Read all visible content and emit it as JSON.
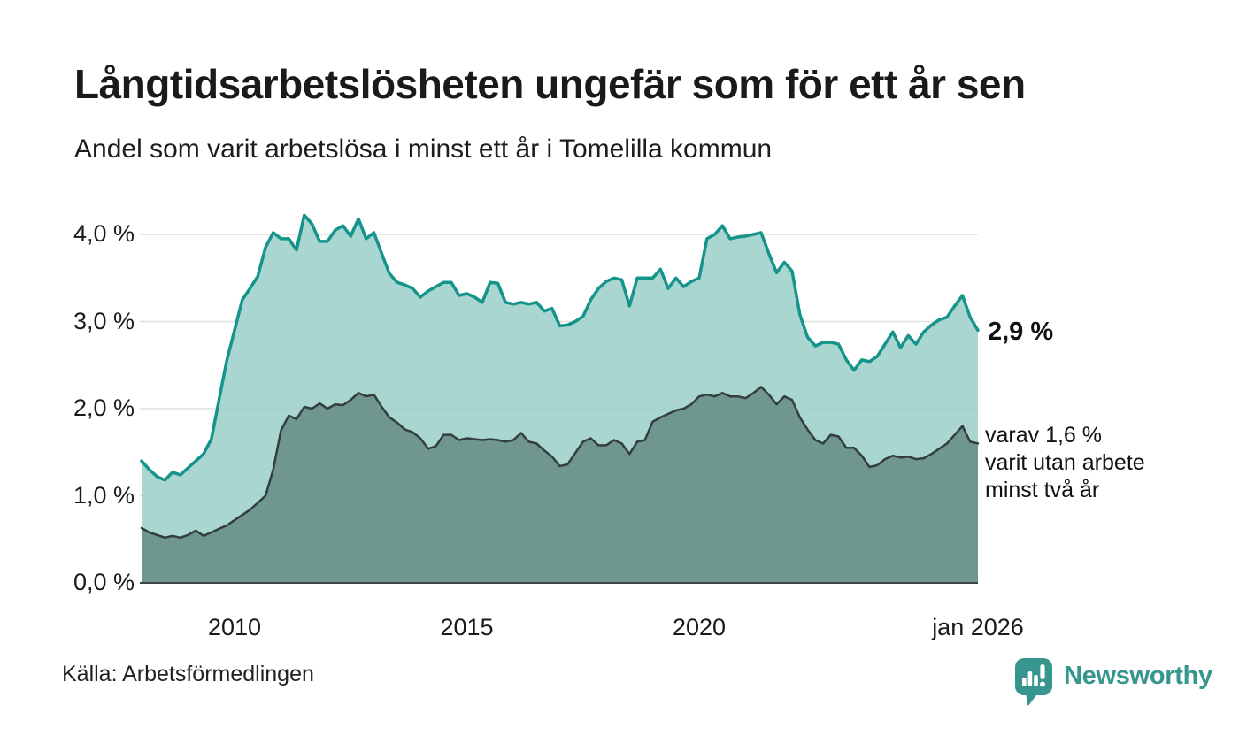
{
  "header": {
    "title": "Långtidsarbetslösheten ungefär som för ett år sen",
    "subtitle": "Andel som varit arbetslösa i minst ett år i Tomelilla kommun"
  },
  "footer": {
    "source": "Källa: Arbetsförmedlingen",
    "logo_text": "Newsworthy"
  },
  "colors": {
    "background": "#ffffff",
    "text": "#1a1a1a",
    "gridline": "#e0e0e0",
    "axis_line": "#3c4543",
    "series1_line": "#14948a",
    "series1_fill": "#9acfc8",
    "series2_line": "#333f3c",
    "series2_fill": "#6f968f",
    "logo_teal": "#36968d"
  },
  "chart_data": {
    "type": "area",
    "title": "Långtidsarbetslösheten ungefär som för ett år sen",
    "subtitle": "Andel som varit arbetslösa i minst ett år i Tomelilla kommun",
    "source": "Källa: Arbetsförmedlingen",
    "grid": true,
    "legend_position": "end-of-line-labels",
    "xlim": [
      2008.0,
      2026.0
    ],
    "ylim": [
      0,
      4.4
    ],
    "x_unit": "year (monthly data, sampled every 2 months)",
    "y_unit": "percent",
    "y_ticks": [
      {
        "label": "4,0 %",
        "value": 4.0
      },
      {
        "label": "3,0 %",
        "value": 3.0
      },
      {
        "label": "2,0 %",
        "value": 2.0
      },
      {
        "label": "1,0 %",
        "value": 1.0
      },
      {
        "label": "0,0 %",
        "value": 0.0
      }
    ],
    "x_ticks": [
      {
        "label": "2010",
        "year": 2010
      },
      {
        "label": "2015",
        "year": 2015
      },
      {
        "label": "2020",
        "year": 2020
      },
      {
        "label": "jan 2026",
        "year": 2026
      }
    ],
    "series": [
      {
        "name": "arbetslösa minst ett år",
        "line_color": "#14948a",
        "fill_color": "#9acfc8",
        "fill_opacity": 0.85,
        "line_width": 3.5,
        "values": [
          1.4,
          1.3,
          1.22,
          1.18,
          1.27,
          1.24,
          1.32,
          1.4,
          1.48,
          1.65,
          2.1,
          2.55,
          2.9,
          3.25,
          3.38,
          3.52,
          3.85,
          4.02,
          3.95,
          3.95,
          3.82,
          4.22,
          4.12,
          3.92,
          3.92,
          4.05,
          4.1,
          3.98,
          4.18,
          3.95,
          4.02,
          3.78,
          3.55,
          3.45,
          3.42,
          3.38,
          3.28,
          3.35,
          3.4,
          3.45,
          3.45,
          3.3,
          3.32,
          3.28,
          3.22,
          3.45,
          3.44,
          3.22,
          3.2,
          3.22,
          3.2,
          3.22,
          3.12,
          3.15,
          2.95,
          2.96,
          3.0,
          3.06,
          3.25,
          3.38,
          3.46,
          3.5,
          3.48,
          3.18,
          3.5,
          3.5,
          3.5,
          3.6,
          3.38,
          3.5,
          3.4,
          3.46,
          3.5,
          3.95,
          4.0,
          4.1,
          3.95,
          3.97,
          3.98,
          4.0,
          4.02,
          3.78,
          3.56,
          3.68,
          3.58,
          3.08,
          2.82,
          2.72,
          2.76,
          2.76,
          2.74,
          2.56,
          2.44,
          2.56,
          2.54,
          2.6,
          2.74,
          2.88,
          2.7,
          2.84,
          2.74,
          2.88,
          2.96,
          3.02,
          3.05,
          3.18,
          3.3,
          3.05,
          2.9
        ]
      },
      {
        "name": "varav utan arbete minst två år",
        "line_color": "#333f3c",
        "fill_color": "#6f968f",
        "fill_opacity": 1,
        "line_width": 2.5,
        "values": [
          0.63,
          0.58,
          0.55,
          0.52,
          0.54,
          0.52,
          0.55,
          0.6,
          0.54,
          0.58,
          0.62,
          0.66,
          0.72,
          0.78,
          0.84,
          0.92,
          1.0,
          1.3,
          1.75,
          1.92,
          1.88,
          2.02,
          2.0,
          2.06,
          2.0,
          2.05,
          2.04,
          2.1,
          2.18,
          2.14,
          2.16,
          2.02,
          1.9,
          1.84,
          1.76,
          1.73,
          1.66,
          1.54,
          1.57,
          1.7,
          1.7,
          1.64,
          1.66,
          1.65,
          1.64,
          1.65,
          1.64,
          1.62,
          1.64,
          1.72,
          1.62,
          1.6,
          1.52,
          1.45,
          1.34,
          1.36,
          1.49,
          1.62,
          1.66,
          1.58,
          1.58,
          1.64,
          1.6,
          1.48,
          1.62,
          1.64,
          1.85,
          1.9,
          1.94,
          1.98,
          2.0,
          2.05,
          2.14,
          2.16,
          2.14,
          2.18,
          2.14,
          2.14,
          2.12,
          2.18,
          2.25,
          2.16,
          2.05,
          2.14,
          2.1,
          1.9,
          1.76,
          1.64,
          1.6,
          1.7,
          1.68,
          1.55,
          1.55,
          1.46,
          1.33,
          1.35,
          1.42,
          1.46,
          1.44,
          1.45,
          1.42,
          1.43,
          1.48,
          1.54,
          1.6,
          1.7,
          1.8,
          1.62,
          1.6
        ]
      }
    ],
    "annotations": [
      {
        "text": "2,9 %",
        "value": 2.9,
        "series": 0,
        "style": "bold"
      },
      {
        "lines": [
          "varav 1,6 %",
          "varit utan arbete",
          "minst två år"
        ],
        "value": 1.6,
        "series": 1,
        "style": "regular"
      }
    ]
  }
}
